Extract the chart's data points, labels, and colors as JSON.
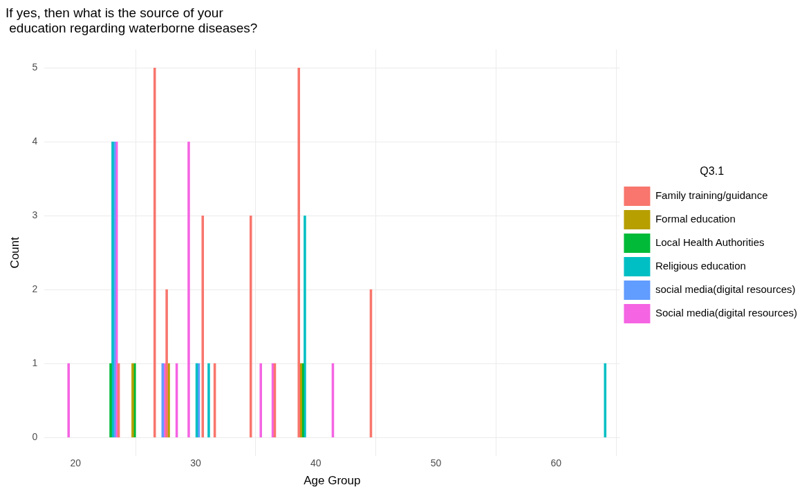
{
  "chart_data": {
    "type": "bar",
    "title": "If yes, then what is the source of your\n education regarding waterborne diseases?",
    "xlabel": "Age Group",
    "ylabel": "Count",
    "legend_title": "Q3.1",
    "legend": "right",
    "grid": true,
    "xlim": [
      17.4,
      65.3
    ],
    "xticks": [
      20,
      30,
      40,
      50,
      60
    ],
    "ylim": [
      -0.25,
      5.25
    ],
    "yticks": [
      0,
      1,
      2,
      3,
      4,
      5
    ],
    "series": [
      {
        "name": "Family training/guidance",
        "color": "#f8766d",
        "x": [
          24,
          27,
          28,
          31,
          32,
          35,
          37,
          39,
          45
        ],
        "values": [
          1,
          5,
          2,
          3,
          1,
          3,
          1,
          5,
          2
        ]
      },
      {
        "name": "Formal education",
        "color": "#b79f00",
        "x": [
          25,
          28,
          39
        ],
        "values": [
          1,
          1,
          1
        ]
      },
      {
        "name": "Local Health Authorities",
        "color": "#00ba38",
        "x": [
          23,
          25,
          39
        ],
        "values": [
          1,
          1,
          1
        ]
      },
      {
        "name": "Religious education",
        "color": "#00bfc4",
        "x": [
          23,
          30,
          31,
          39,
          64
        ],
        "values": [
          4,
          1,
          1,
          3,
          1
        ]
      },
      {
        "name": "social media(digital resources)",
        "color": "#619cff",
        "x": [
          23,
          27,
          30
        ],
        "values": [
          4,
          1,
          1
        ]
      },
      {
        "name": "Social media(digital resources)",
        "color": "#f564e3",
        "x": [
          19,
          23,
          27,
          28,
          29,
          35,
          36,
          41
        ],
        "values": [
          1,
          4,
          1,
          1,
          4,
          1,
          1,
          1
        ]
      }
    ]
  }
}
